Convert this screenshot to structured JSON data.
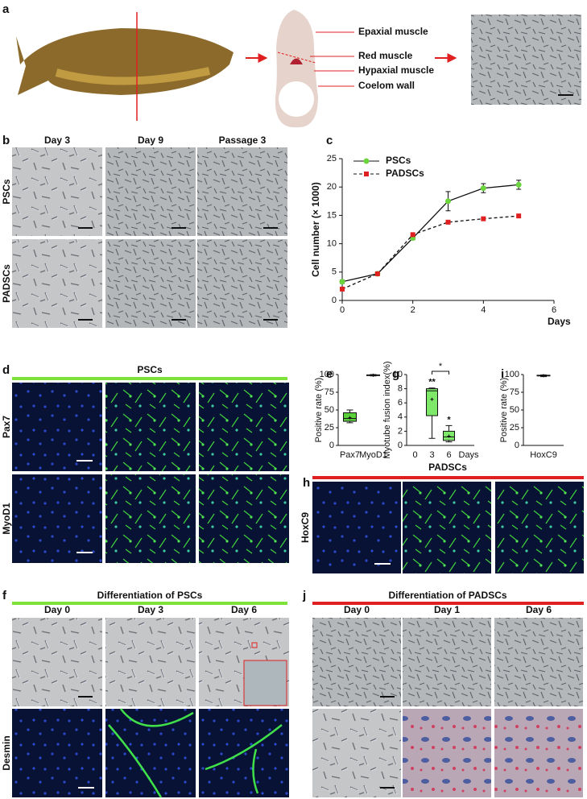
{
  "panel_labels": [
    "a",
    "b",
    "c",
    "d",
    "e",
    "f",
    "g",
    "h",
    "i",
    "j"
  ],
  "panel_a": {
    "labels": [
      "Epaxial  muscle",
      "Red muscle",
      "Hypaxial muscle",
      "Coelom wall"
    ]
  },
  "panel_b": {
    "columns": [
      "Day 3",
      "Day 9",
      "Passage 3"
    ],
    "rows": [
      "PSCs",
      "PADSCs"
    ]
  },
  "panel_d": {
    "title": "PSCs",
    "rows": [
      "Pax7",
      "MyoD1"
    ]
  },
  "panel_h": {
    "title": "PADSCs",
    "rows": [
      "HoxC9"
    ]
  },
  "panel_f": {
    "title": "Differentiation of PSCs",
    "columns": [
      "Day 0",
      "Day 3",
      "Day 6"
    ],
    "rows": [
      "Desmin"
    ]
  },
  "panel_j": {
    "title": "Differentiation of PADSCs",
    "columns": [
      "Day 0",
      "Day 1",
      "Day 6"
    ]
  },
  "chart_data": [
    {
      "type": "line",
      "ylabel": "Cell number (× 1000)",
      "xlabel": "Days",
      "x": [
        0,
        1,
        2,
        3,
        4,
        5
      ],
      "xlim": [
        0,
        6
      ],
      "xticks": [
        0,
        2,
        4,
        6
      ],
      "ylim": [
        0,
        25
      ],
      "yticks": [
        0,
        5,
        10,
        15,
        20,
        25
      ],
      "series": [
        {
          "name": "PSCs",
          "color": "#6cd43c",
          "values": [
            3.3,
            4.7,
            11,
            17.5,
            19.8,
            20.4
          ],
          "errors": [
            0.3,
            0.2,
            0.3,
            1.7,
            0.8,
            0.8
          ]
        },
        {
          "name": "PADSCs",
          "color": "#e02020",
          "values": [
            2,
            4.7,
            11.6,
            13.8,
            14.4,
            14.9
          ]
        }
      ]
    },
    {
      "type": "box",
      "ylabel": "Positive rate (%)",
      "categories": [
        "Pax7",
        "MyoD1"
      ],
      "ylim": [
        0,
        100
      ],
      "yticks": [
        0,
        25,
        50,
        75,
        100
      ],
      "color": "#5ad13a",
      "boxes": [
        {
          "min": 32,
          "q1": 34,
          "median": 38,
          "q3": 46,
          "max": 50,
          "mean": 39
        },
        {
          "min": 98,
          "q1": 98.5,
          "median": 99,
          "q3": 99.5,
          "max": 100,
          "mean": 99
        }
      ]
    },
    {
      "type": "box",
      "ylabel": "Myotube fusion index(%)",
      "xlabel": "Days",
      "x": [
        3,
        6
      ],
      "xlim": [
        -1.5,
        10.5
      ],
      "xticks": [
        0,
        3,
        6
      ],
      "ylim": [
        0,
        10
      ],
      "yticks": [
        0,
        2,
        4,
        6,
        8,
        10
      ],
      "color": "#7ee868",
      "boxes": [
        {
          "min": 1,
          "q1": 4.2,
          "median": 7.7,
          "q3": 8,
          "max": 8.1,
          "mean": 6.5
        },
        {
          "min": 0.5,
          "q1": 0.7,
          "median": 1.2,
          "q3": 2,
          "max": 2.8,
          "mean": 1.3
        }
      ],
      "box_labels": [
        "**",
        "*"
      ],
      "bracket_label": "*"
    },
    {
      "type": "box",
      "ylabel": "Positive rate (%)",
      "categories": [
        "HoxC9"
      ],
      "ylim": [
        0,
        100
      ],
      "yticks": [
        0,
        25,
        50,
        75,
        100
      ],
      "color": "#5ad13a",
      "boxes": [
        {
          "min": 97,
          "q1": 98,
          "median": 98.5,
          "q3": 99,
          "max": 99.5,
          "mean": 98.5
        }
      ]
    }
  ]
}
